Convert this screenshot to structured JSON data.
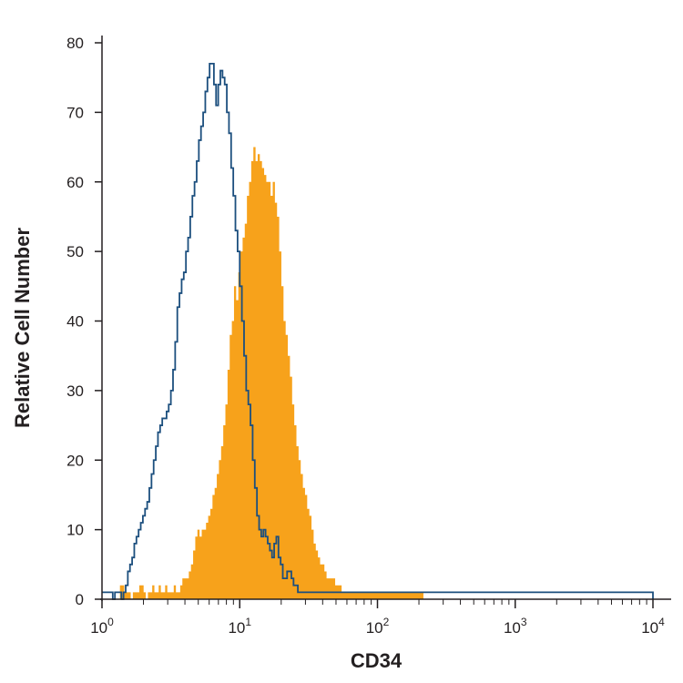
{
  "chart_data": {
    "type": "histogram",
    "xlabel": "CD34",
    "ylabel": "Relative Cell Number",
    "x_scale": "log",
    "xlim": [
      1,
      10000
    ],
    "ylim": [
      0,
      80
    ],
    "y_ticks": [
      0,
      10,
      20,
      30,
      40,
      50,
      60,
      70,
      80
    ],
    "x_ticks": [
      {
        "value": 1,
        "base": "10",
        "exp": "0"
      },
      {
        "value": 10,
        "base": "10",
        "exp": "1"
      },
      {
        "value": 100,
        "base": "10",
        "exp": "2"
      },
      {
        "value": 1000,
        "base": "10",
        "exp": "3"
      },
      {
        "value": 10000,
        "base": "10",
        "exp": "4"
      }
    ],
    "grid": false,
    "bins_per_decade": 64,
    "series": [
      {
        "style": "filled",
        "color": "#f7a21b",
        "start_x": 1.35,
        "values": [
          2,
          2,
          1,
          1,
          1,
          0,
          1,
          1,
          1,
          2,
          2,
          1,
          0,
          1,
          1,
          2,
          1,
          1,
          2,
          1,
          1,
          2,
          1,
          1,
          1,
          2,
          1,
          1,
          2,
          3,
          3,
          3,
          4,
          5,
          7,
          9,
          10,
          9,
          10,
          10,
          11,
          12,
          13,
          15,
          16,
          18,
          20,
          22,
          25,
          28,
          33,
          38,
          40,
          45,
          43,
          47,
          50,
          52,
          54,
          58,
          60,
          63,
          65,
          63,
          64,
          63,
          62,
          61,
          60,
          60,
          58,
          60,
          57,
          55,
          50,
          45,
          40,
          38,
          35,
          32,
          28,
          25,
          22,
          20,
          18,
          16,
          15,
          13,
          12,
          10,
          8,
          7,
          6,
          5,
          5,
          4,
          3,
          3,
          3,
          3,
          2,
          2,
          2,
          1,
          1,
          1,
          1,
          1,
          1,
          1,
          1,
          1,
          1,
          1,
          1,
          1,
          1,
          1,
          1,
          1,
          1,
          1,
          1,
          1,
          1,
          1,
          1,
          1,
          1,
          1,
          1,
          1,
          1,
          1,
          1,
          1,
          1,
          1,
          1,
          1,
          1,
          0,
          0,
          0
        ]
      },
      {
        "style": "outline",
        "color": "#1c4f7e",
        "start_x": 1,
        "values": [
          1,
          1,
          1,
          1,
          1,
          0,
          1,
          1,
          1,
          0,
          1,
          2,
          4,
          5,
          6,
          8,
          9,
          10,
          11,
          12,
          13,
          14,
          16,
          18,
          20,
          22,
          24,
          25,
          26,
          26,
          27,
          28,
          30,
          33,
          37,
          42,
          44,
          46,
          47,
          50,
          52,
          55,
          58,
          60,
          63,
          66,
          68,
          70,
          73,
          75,
          77,
          77,
          74,
          71,
          74,
          76,
          75,
          74,
          70,
          67,
          62,
          58,
          53,
          50,
          45,
          40,
          35,
          30,
          28,
          25,
          20,
          16,
          12,
          10,
          9,
          10,
          9,
          8,
          7,
          6,
          8,
          9,
          6,
          5,
          3,
          3,
          4,
          4,
          3,
          2,
          2,
          1,
          1,
          1,
          1,
          1,
          1,
          1,
          1,
          1,
          1,
          1,
          1,
          1,
          1,
          1,
          1,
          1,
          1,
          1,
          1,
          1,
          1,
          1,
          1,
          1,
          1,
          1,
          1,
          1,
          1,
          1,
          1,
          1,
          1,
          1,
          1,
          1,
          1,
          1,
          1,
          1,
          1,
          1,
          1,
          1,
          1,
          1,
          1,
          1,
          1,
          1,
          1,
          1,
          1,
          1,
          1,
          1,
          1,
          1,
          1,
          1,
          1,
          1,
          1,
          1,
          1,
          1,
          1,
          1,
          1,
          1,
          1,
          1,
          1,
          1,
          1,
          1,
          1,
          1,
          1,
          1,
          1,
          1,
          1,
          1,
          1,
          1,
          1,
          1,
          1,
          1,
          1,
          1,
          1,
          1,
          1,
          1,
          1,
          1,
          1,
          1,
          1,
          1,
          1,
          1,
          1,
          1,
          1,
          1,
          1,
          1,
          1,
          1,
          1,
          1,
          1,
          1,
          1,
          1,
          1,
          1,
          1,
          1,
          1,
          1,
          1,
          1,
          1,
          1,
          1,
          1,
          1,
          1,
          1,
          1,
          1,
          1,
          1,
          1,
          1,
          1,
          1,
          1,
          1,
          1,
          1,
          1,
          1,
          1,
          1,
          1,
          1,
          1,
          1,
          1,
          1,
          1,
          1,
          1,
          1,
          1,
          1,
          1,
          1,
          1,
          1,
          1,
          1,
          1,
          1,
          1,
          1,
          1,
          1,
          1
        ]
      }
    ]
  }
}
